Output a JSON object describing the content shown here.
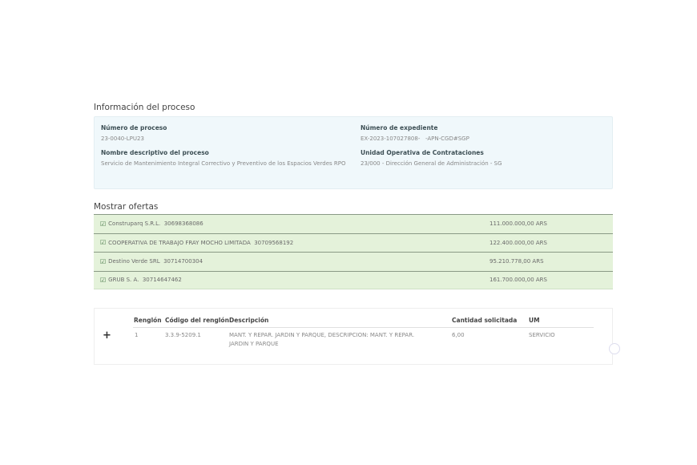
{
  "info": {
    "title": "Información del proceso",
    "numero_proceso_label": "Número de proceso",
    "numero_proceso": "23-0040-LPU23",
    "nombre_label": "Nombre descriptivo del proceso",
    "nombre": "Servicio de Mantenimiento Integral Correctivo y Preventivo de los Espacios Verdes RPO",
    "expediente_label": "Número de expediente",
    "expediente": "EX-2023-107027808-   -APN-CGD#SGP",
    "unidad_label": "Unidad Operativa de Contrataciones",
    "unidad": "23/000 - Dirección General de Administración - SG"
  },
  "offers": {
    "title": "Mostrar ofertas",
    "items": [
      {
        "name": "Construparq S.R.L.  30698368086",
        "amount": "111.000.000,00 ARS"
      },
      {
        "name": "COOPERATIVA DE TRABAJO FRAY MOCHO LIMITADA  30709568192",
        "amount": "122.400.000,00 ARS"
      },
      {
        "name": "Destino Verde SRL  30714700304",
        "amount": "95.210.778,00 ARS"
      },
      {
        "name": "GRUB S. A.  30714647462",
        "amount": "161.700.000,00 ARS"
      }
    ]
  },
  "table": {
    "headers": [
      "Renglón",
      "Código del renglón",
      "Descripción",
      "Cantidad solicitada",
      "UM"
    ],
    "rows": [
      {
        "renglon": "1",
        "codigo": "3.3.9-5209.1",
        "descripcion": "MANT. Y REPAR. JARDIN Y PARQUE, DESCRIPCION: MANT. Y REPAR. JARDIN Y PARQUE",
        "cantidad": "6,00",
        "um": "SERVICIO"
      }
    ],
    "expand_icon": "+"
  }
}
